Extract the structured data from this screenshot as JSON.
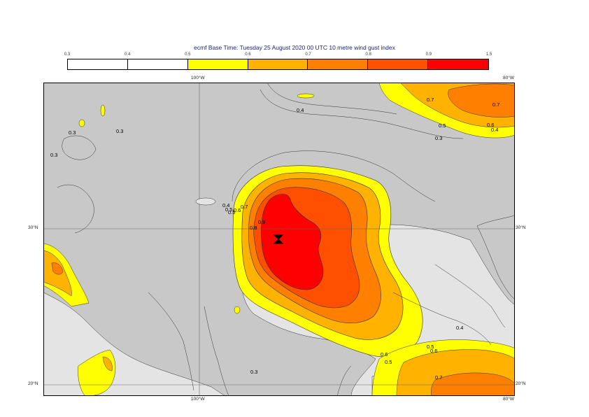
{
  "title": "ecmf  Base Time: Tuesday 25 August 2020 00 UTC 10 metre wind gust index",
  "colorbar": {
    "ticks": [
      "0.3",
      "0.4",
      "0.5",
      "0.6",
      "0.7",
      "0.8",
      "0.9",
      "1.5"
    ],
    "colors": [
      "#ffffff",
      "#ffffff",
      "#ffff00",
      "#ffb300",
      "#ff8000",
      "#ff4f00",
      "#ff0000"
    ]
  },
  "axes": {
    "lon_top_left": "100°W",
    "lon_top_right": "80°W",
    "lon_bottom_left": "100°W",
    "lon_bottom_right": "80°W",
    "lat_left_30": "30°N",
    "lat_left_20": "20°N",
    "lat_right_30": "30°N",
    "lat_right_20": "20°N"
  },
  "contour_labels": [
    "0.4",
    "0.7",
    "0.7",
    "0.5",
    "0.6",
    "0.4",
    "0.3",
    "0.3",
    "0.3",
    "0.3",
    "0.5",
    "0.4",
    "0.5",
    "0.6",
    "0.7",
    "0.8",
    "0.9",
    "0.4",
    "0.5",
    "0.6",
    "0.6",
    "0.5",
    "0.3",
    "0.7"
  ],
  "storm_symbol": "hurricane-icon",
  "map_colors": {
    "land": "#c8c8c8",
    "sea": "#e4e4e4",
    "c05": "#ffff00",
    "c06": "#ffb300",
    "c07": "#ff8000",
    "c08": "#ff4f00",
    "c09": "#ff0000"
  }
}
